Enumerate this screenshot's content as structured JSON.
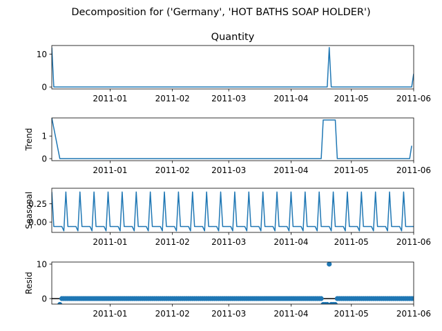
{
  "suptitle": "Decomposition for ('Germany', 'HOT BATHS SOAP HOLDER')",
  "colors": {
    "line": "#1f77b4",
    "axis": "#000000",
    "background": "#ffffff"
  },
  "chart_data": [
    {
      "type": "line",
      "name": "observed",
      "title": "Quantity",
      "ylabel": "",
      "x_range": [
        "2010-12-03",
        "2011-06-01"
      ],
      "ylim": [
        -0.6,
        12.6
      ],
      "yticks": [
        0,
        10
      ],
      "xticks": [
        "2011-01",
        "2011-02",
        "2011-03",
        "2011-04",
        "2011-05",
        "2011-06"
      ],
      "values": {
        "default": 0,
        "points": [
          [
            "2010-12-03",
            12
          ],
          [
            "2011-04-20",
            12
          ],
          [
            "2011-06-01",
            4
          ]
        ]
      }
    },
    {
      "type": "line",
      "name": "trend",
      "title": "",
      "ylabel": "Trend",
      "x_range": [
        "2010-12-03",
        "2011-06-01"
      ],
      "ylim": [
        -0.09,
        1.8
      ],
      "yticks": [
        0,
        1
      ],
      "xticks": [
        "2011-01",
        "2011-02",
        "2011-03",
        "2011-04",
        "2011-05",
        "2011-06"
      ],
      "segments": [
        [
          [
            "2010-12-03",
            1.8
          ],
          [
            "2010-12-07",
            0
          ],
          [
            "2011-04-16",
            0
          ],
          [
            "2011-04-17",
            1.71
          ],
          [
            "2011-04-23",
            1.71
          ],
          [
            "2011-04-24",
            0
          ],
          [
            "2011-05-30",
            0
          ],
          [
            "2011-05-31",
            0.57
          ]
        ]
      ]
    },
    {
      "type": "line",
      "name": "seasonal",
      "title": "",
      "ylabel": "Seasonal",
      "x_range": [
        "2010-12-03",
        "2011-06-01"
      ],
      "ylim": [
        -0.14,
        0.46
      ],
      "yticks": [
        0,
        0.25
      ],
      "yticklabels": [
        "0.00",
        "0.25"
      ],
      "xticks": [
        "2011-01",
        "2011-02",
        "2011-03",
        "2011-04",
        "2011-05",
        "2011-06"
      ],
      "period_days": 7,
      "pattern": [
        0.41,
        -0.06,
        -0.06,
        -0.06,
        -0.06,
        -0.06,
        -0.12
      ],
      "pattern_start": "2010-12-03"
    },
    {
      "type": "scatter",
      "name": "resid",
      "title": "",
      "ylabel": "Resid",
      "x_range": [
        "2010-12-03",
        "2011-06-01"
      ],
      "ylim": [
        -1.6,
        10.6
      ],
      "yticks": [
        0,
        10
      ],
      "xticks": [
        "2011-01",
        "2011-02",
        "2011-03",
        "2011-04",
        "2011-05",
        "2011-06"
      ],
      "zero_line": true,
      "values": {
        "default": 0,
        "points": [
          [
            "2010-12-07",
            -1.7
          ],
          [
            "2011-04-17",
            -1.7
          ],
          [
            "2011-04-18",
            -1.7
          ],
          [
            "2011-04-19",
            -1.7
          ],
          [
            "2011-04-20",
            10.0
          ],
          [
            "2011-04-21",
            -1.7
          ],
          [
            "2011-04-22",
            -1.7
          ],
          [
            "2011-04-23",
            -1.7
          ]
        ]
      }
    }
  ]
}
